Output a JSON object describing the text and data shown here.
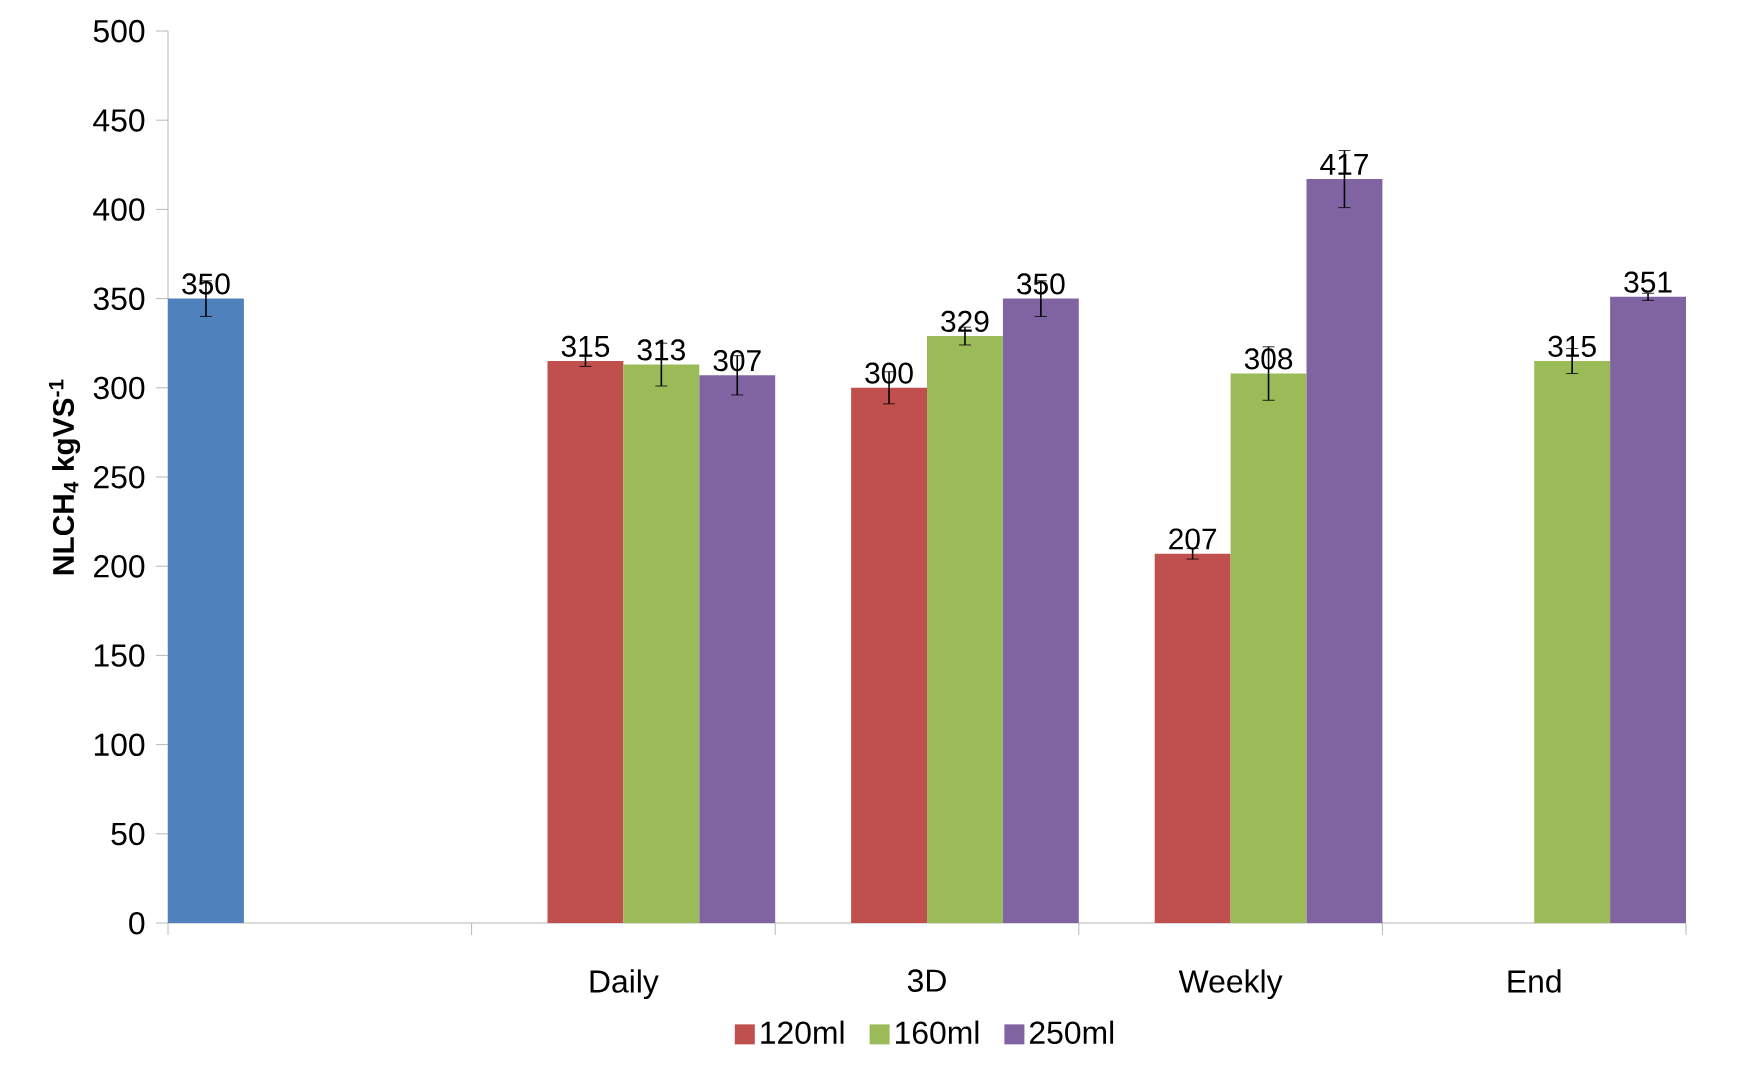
{
  "chart_data": {
    "type": "bar",
    "ylabel": "NLCH$_{4}$ kgVS$^{-1}$",
    "categories": [
      null,
      "Daily",
      "3D",
      "Weekly",
      "End"
    ],
    "series": [
      {
        "color": "#4f81bd",
        "values": [
          350,
          null,
          null,
          null,
          null
        ],
        "errors": [
          10,
          null,
          null,
          null,
          null
        ]
      },
      {
        "name": "120ml",
        "color": "#c0504d",
        "values": [
          null,
          315,
          300,
          207,
          null
        ],
        "errors": [
          null,
          3,
          9,
          3,
          null
        ]
      },
      {
        "name": "160ml",
        "color": "#9bbb59",
        "values": [
          null,
          313,
          329,
          308,
          315
        ],
        "errors": [
          null,
          12,
          5,
          15,
          7
        ]
      },
      {
        "name": "250ml",
        "color": "#8064a2",
        "values": [
          null,
          307,
          350,
          417,
          351
        ],
        "errors": [
          null,
          11,
          10,
          16,
          2
        ]
      }
    ],
    "ylim": [
      0,
      500
    ],
    "yticks": [
      0,
      50,
      100,
      150,
      200,
      250,
      300,
      350,
      400,
      450,
      500
    ],
    "data_labels": true,
    "legend": "bottom",
    "grid": false
  }
}
